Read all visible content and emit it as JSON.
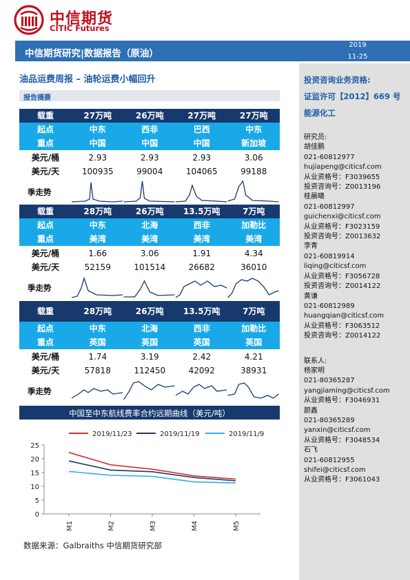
{
  "header": {
    "logo_cn": "中信期货",
    "logo_en": "CITIC Futures",
    "banner": "中信期货研究|数据报告（原油）",
    "date_year": "2019",
    "date_md": "11-25"
  },
  "report": {
    "title": "油品运费周报 – 油轮运费小幅回升",
    "summary_label": "报告摘要"
  },
  "freight_tables": [
    {
      "load_label": "载重",
      "origin_label": "起点",
      "dest_label": "重点",
      "bbl_label": "美元/桶",
      "day_label": "美元/天",
      "season_label": "季走势",
      "loads": [
        "27万吨",
        "26万吨",
        "27万吨",
        "27万吨"
      ],
      "origins": [
        "中东",
        "西非",
        "巴西",
        "中东"
      ],
      "dests": [
        "中国",
        "中国",
        "中国",
        "新加坡"
      ],
      "usd_bbl": [
        "2.93",
        "2.93",
        "2.93",
        "3.06"
      ],
      "usd_day": [
        "100935",
        "99004",
        "104065",
        "99188"
      ]
    },
    {
      "load_label": "载重",
      "origin_label": "起点",
      "dest_label": "重点",
      "bbl_label": "美元/桶",
      "day_label": "美元/天",
      "season_label": "季走势",
      "loads": [
        "28万吨",
        "26万吨",
        "13.5万吨",
        "7万吨"
      ],
      "origins": [
        "中东",
        "北海",
        "西非",
        "加勒比"
      ],
      "dests": [
        "美湾",
        "美湾",
        "美湾",
        "美湾"
      ],
      "usd_bbl": [
        "1.66",
        "3.06",
        "1.91",
        "4.34"
      ],
      "usd_day": [
        "52159",
        "101514",
        "26682",
        "36010"
      ]
    },
    {
      "load_label": "载重",
      "origin_label": "起点",
      "dest_label": "重点",
      "bbl_label": "美元/桶",
      "day_label": "美元/天",
      "season_label": "季走势",
      "loads": [
        "28万吨",
        "26万吨",
        "13.5万吨",
        "7万吨"
      ],
      "origins": [
        "中东",
        "北海",
        "西非",
        "加勒比"
      ],
      "dests": [
        "英国",
        "英国",
        "英国",
        "英国"
      ],
      "usd_bbl": [
        "1.74",
        "3.19",
        "2.42",
        "4.21"
      ],
      "usd_day": [
        "57818",
        "112450",
        "42092",
        "38931"
      ]
    }
  ],
  "chart_title": "中国至中东航线费率合约远期曲线（美元/吨）",
  "chart_data": {
    "type": "line",
    "title": "中国至中东航线费率合约远期曲线（美元/吨）",
    "x": [
      "M1",
      "M2",
      "M3",
      "M4",
      "M5"
    ],
    "ylim": [
      0,
      25
    ],
    "yticks": [
      0,
      5,
      10,
      15,
      20,
      25
    ],
    "grid": false,
    "legend_position": "top",
    "series": [
      {
        "name": "2019/11/23",
        "color": "#d92b2b",
        "values": [
          22.3,
          17.8,
          16.2,
          13.8,
          12.6
        ]
      },
      {
        "name": "2019/11/19",
        "color": "#1f3864",
        "values": [
          19.2,
          15.9,
          15.3,
          13.2,
          12.0
        ]
      },
      {
        "name": "2019/11/9",
        "color": "#2ab0e8",
        "values": [
          15.4,
          14.0,
          13.6,
          11.6,
          11.2
        ]
      }
    ]
  },
  "source": "数据来源：Galbraiths 中信期货研究部",
  "sidebar": {
    "qual_title": "投资咨询业务资格:",
    "license": "证监许可【2012】669 号",
    "dept": "能源化工",
    "researchers_label": "研究员:",
    "researchers": [
      {
        "name": "胡佳鹏",
        "phone": "021-60812977",
        "email": "hujiapeng@citicsf.com",
        "cert": "从业资格号：F3039655",
        "advisory": "投资咨询号：Z0013196"
      },
      {
        "name": "桂晨曦",
        "phone": "021-60812997",
        "email": "guichenxi@citicsf.com",
        "cert": "从业资格号：F3023159",
        "advisory": "投资咨询号：Z0013632"
      },
      {
        "name": "李青",
        "phone": "021-60819914",
        "email": "liqing@citicsf.com",
        "cert": "从业资格号：F3056728",
        "advisory": "投资咨询号：Z0014122"
      },
      {
        "name": "黄谦",
        "phone": "021-60812989",
        "email": "huangqian@citicsf.com",
        "cert": "从业资格号：F3063512",
        "advisory": "投资咨询号：Z0014122"
      }
    ],
    "contacts_label": "联系人:",
    "contacts": [
      {
        "name": "杨家明",
        "phone": "021-80365287",
        "email": "yangjiaming@citicsf.com",
        "cert": "从业资格号：F3046931"
      },
      {
        "name": "颜鑫",
        "phone": "021-80365289",
        "email": "yanxin@citicsf.com",
        "cert": "从业资格号：F3048534"
      },
      {
        "name": "石飞",
        "phone": "021-60812955",
        "email": "shifei@citicsf.com",
        "cert": "从业资格号：F3061043"
      }
    ]
  }
}
